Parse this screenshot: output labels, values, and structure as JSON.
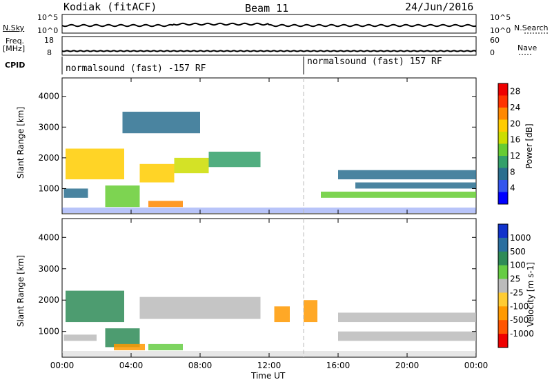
{
  "header": {
    "station": "Kodiak (fitACF)",
    "beam": "Beam 11",
    "date": "24/Jun/2016"
  },
  "top_panels": {
    "nsky_label": "N.Sky",
    "nsearch_label": "N.Search",
    "freq_label": "Freq.",
    "freq_unit": "[MHz]",
    "nave_label": "Nave",
    "cpid_label": "CPID",
    "nsky_ticks": [
      "10^5",
      "10^0"
    ],
    "nsearch_ticks": [
      "10^5",
      "10^0"
    ],
    "freq_ticks": [
      "18",
      "8"
    ],
    "nave_ticks": [
      "60",
      "0"
    ],
    "cpid_segments": [
      {
        "label": "normalsound (fast) -157 RF",
        "start_hour": 0
      },
      {
        "label": "normalsound (fast) 157 RF",
        "start_hour": 14
      }
    ]
  },
  "chart_data": [
    {
      "type": "heatmap",
      "title": "",
      "xlabel": "Time UT",
      "ylabel": "Slant Range [km]",
      "x_ticks": [
        "00:00",
        "04:00",
        "08:00",
        "12:00",
        "16:00",
        "20:00",
        "00:00"
      ],
      "xlim_hours": [
        0,
        24
      ],
      "y_ticks": [
        "1000",
        "2000",
        "3000",
        "4000"
      ],
      "ylim_km": [
        180,
        4600
      ],
      "colorbar_label": "Power [dB]",
      "colorbar_ticks": [
        "4",
        "8",
        "12",
        "16",
        "20",
        "24",
        "28"
      ],
      "colorbar_range": [
        0,
        30
      ],
      "colors": [
        "#0000ff",
        "#3355ee",
        "#2a6f8f",
        "#33a06a",
        "#66cc33",
        "#ccdd00",
        "#ffcc00",
        "#ff8800",
        "#ff3300",
        "#ee0000"
      ],
      "regions": [
        {
          "t0": 0.2,
          "t1": 3.6,
          "r0": 1300,
          "r1": 2300,
          "value": 18
        },
        {
          "t0": 2.5,
          "t1": 4.5,
          "r0": 400,
          "r1": 1100,
          "value": 14
        },
        {
          "t0": 4.5,
          "t1": 6.5,
          "r0": 1200,
          "r1": 1800,
          "value": 18
        },
        {
          "t0": 6.5,
          "t1": 8.5,
          "r0": 1500,
          "r1": 2000,
          "value": 16
        },
        {
          "t0": 8.5,
          "t1": 11.5,
          "r0": 1700,
          "r1": 2200,
          "value": 10
        },
        {
          "t0": 5.0,
          "t1": 7.0,
          "r0": 400,
          "r1": 600,
          "value": 22
        },
        {
          "t0": 3.5,
          "t1": 8.0,
          "r0": 2800,
          "r1": 3500,
          "value": 6
        },
        {
          "t0": 0.1,
          "t1": 1.5,
          "r0": 700,
          "r1": 1000,
          "value": 8
        },
        {
          "t0": 15.0,
          "t1": 24.0,
          "r0": 700,
          "r1": 900,
          "value": 14
        },
        {
          "t0": 16.0,
          "t1": 24.0,
          "r0": 1300,
          "r1": 1600,
          "value": 8
        },
        {
          "t0": 17.0,
          "t1": 24.0,
          "r0": 1000,
          "r1": 1200,
          "value": 6
        }
      ]
    },
    {
      "type": "heatmap",
      "title": "",
      "xlabel": "Time UT",
      "ylabel": "Slant Range [km]",
      "x_ticks": [
        "00:00",
        "04:00",
        "08:00",
        "12:00",
        "16:00",
        "20:00",
        "00:00"
      ],
      "xlim_hours": [
        0,
        24
      ],
      "y_ticks": [
        "1000",
        "2000",
        "3000",
        "4000"
      ],
      "ylim_km": [
        180,
        4600
      ],
      "colorbar_label": "Velocity [m s-1]",
      "colorbar_ticks": [
        "1000",
        "500",
        "100",
        "25",
        "-25",
        "-100",
        "-500",
        "-1000"
      ],
      "colors": [
        "#1133cc",
        "#2a6f9f",
        "#2e8b57",
        "#66cc44",
        "#bbbbbb",
        "#ffcc33",
        "#ff9900",
        "#ff5500",
        "#ee0000"
      ],
      "regions": [
        {
          "t0": 0.2,
          "t1": 3.6,
          "r0": 1300,
          "r1": 2300,
          "value": 200
        },
        {
          "t0": 2.5,
          "t1": 4.5,
          "r0": 500,
          "r1": 1100,
          "value": 300
        },
        {
          "t0": 4.5,
          "t1": 11.5,
          "r0": 1400,
          "r1": 2100,
          "value": 0
        },
        {
          "t0": 3.0,
          "t1": 4.8,
          "r0": 400,
          "r1": 600,
          "value": -300
        },
        {
          "t0": 5.0,
          "t1": 7.0,
          "r0": 400,
          "r1": 600,
          "value": 60
        },
        {
          "t0": 12.3,
          "t1": 13.2,
          "r0": 1300,
          "r1": 1800,
          "value": -300
        },
        {
          "t0": 14.0,
          "t1": 14.8,
          "r0": 1300,
          "r1": 2000,
          "value": -300
        },
        {
          "t0": 16.0,
          "t1": 24.0,
          "r0": 700,
          "r1": 1000,
          "value": 0
        },
        {
          "t0": 16.0,
          "t1": 24.0,
          "r0": 1300,
          "r1": 1600,
          "value": 0
        },
        {
          "t0": 0.1,
          "t1": 2.0,
          "r0": 700,
          "r1": 900,
          "value": 0
        }
      ]
    }
  ]
}
